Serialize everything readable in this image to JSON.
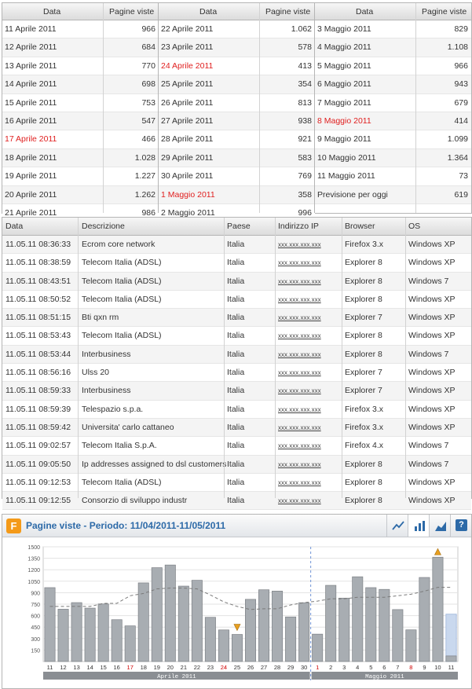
{
  "daily_views": {
    "header": {
      "date": "Data",
      "views": "Pagine viste"
    },
    "columns": [
      [
        {
          "date": "11 Aprile 2011",
          "value": "966",
          "highlight": false
        },
        {
          "date": "12 Aprile 2011",
          "value": "684",
          "highlight": false
        },
        {
          "date": "13 Aprile 2011",
          "value": "770",
          "highlight": false
        },
        {
          "date": "14 Aprile 2011",
          "value": "698",
          "highlight": false
        },
        {
          "date": "15 Aprile 2011",
          "value": "753",
          "highlight": false
        },
        {
          "date": "16 Aprile 2011",
          "value": "547",
          "highlight": false
        },
        {
          "date": "17 Aprile 2011",
          "value": "466",
          "highlight": true
        },
        {
          "date": "18 Aprile 2011",
          "value": "1.028",
          "highlight": false
        },
        {
          "date": "19 Aprile 2011",
          "value": "1.227",
          "highlight": false
        },
        {
          "date": "20 Aprile 2011",
          "value": "1.262",
          "highlight": false
        },
        {
          "date": "21 Aprile 2011",
          "value": "986",
          "highlight": false
        }
      ],
      [
        {
          "date": "22 Aprile 2011",
          "value": "1.062",
          "highlight": false
        },
        {
          "date": "23 Aprile 2011",
          "value": "578",
          "highlight": false
        },
        {
          "date": "24 Aprile 2011",
          "value": "413",
          "highlight": true
        },
        {
          "date": "25 Aprile 2011",
          "value": "354",
          "highlight": false
        },
        {
          "date": "26 Aprile 2011",
          "value": "813",
          "highlight": false
        },
        {
          "date": "27 Aprile 2011",
          "value": "938",
          "highlight": false
        },
        {
          "date": "28 Aprile 2011",
          "value": "921",
          "highlight": false
        },
        {
          "date": "29 Aprile 2011",
          "value": "583",
          "highlight": false
        },
        {
          "date": "30 Aprile 2011",
          "value": "769",
          "highlight": false
        },
        {
          "date": "1 Maggio 2011",
          "value": "358",
          "highlight": true
        },
        {
          "date": "2 Maggio 2011",
          "value": "996",
          "highlight": false
        }
      ],
      [
        {
          "date": "3 Maggio 2011",
          "value": "829",
          "highlight": false
        },
        {
          "date": "4 Maggio 2011",
          "value": "1.108",
          "highlight": false
        },
        {
          "date": "5 Maggio 2011",
          "value": "966",
          "highlight": false
        },
        {
          "date": "6 Maggio 2011",
          "value": "943",
          "highlight": false
        },
        {
          "date": "7 Maggio 2011",
          "value": "679",
          "highlight": false
        },
        {
          "date": "8 Maggio 2011",
          "value": "414",
          "highlight": true
        },
        {
          "date": "9 Maggio 2011",
          "value": "1.099",
          "highlight": false
        },
        {
          "date": "10 Maggio 2011",
          "value": "1.364",
          "highlight": false
        },
        {
          "date": "11 Maggio 2011",
          "value": "73",
          "highlight": false
        },
        {
          "date": "Previsione per oggi",
          "value": "619",
          "highlight": false
        }
      ]
    ]
  },
  "visitor_log": {
    "headers": [
      "Data",
      "Descrizione",
      "Paese",
      "Indirizzo IP",
      "Browser",
      "OS"
    ],
    "rows": [
      [
        "11.05.11  08:36:33",
        "Ecrom core network",
        "Italia",
        "xxx.xxx.xxx.xxx",
        "Firefox 3.x",
        "Windows XP"
      ],
      [
        "11.05.11  08:38:59",
        "Telecom Italia (ADSL)",
        "Italia",
        "xxx.xxx.xxx.xxx",
        "Explorer 8",
        "Windows XP"
      ],
      [
        "11.05.11  08:43:51",
        "Telecom Italia (ADSL)",
        "Italia",
        "xxx.xxx.xxx.xxx",
        "Explorer 8",
        "Windows 7"
      ],
      [
        "11.05.11  08:50:52",
        "Telecom Italia (ADSL)",
        "Italia",
        "xxx.xxx.xxx.xxx",
        "Explorer 8",
        "Windows XP"
      ],
      [
        "11.05.11  08:51:15",
        "Bti qxn rm",
        "Italia",
        "xxx.xxx.xxx.xxx",
        "Explorer 7",
        "Windows XP"
      ],
      [
        "11.05.11  08:53:43",
        "Telecom Italia (ADSL)",
        "Italia",
        "xxx.xxx.xxx.xxx",
        "Explorer 8",
        "Windows XP"
      ],
      [
        "11.05.11  08:53:44",
        "Interbusiness",
        "Italia",
        "xxx.xxx.xxx.xxx",
        "Explorer 8",
        "Windows 7"
      ],
      [
        "11.05.11  08:56:16",
        "Ulss 20",
        "Italia",
        "xxx.xxx.xxx.xxx",
        "Explorer 7",
        "Windows XP"
      ],
      [
        "11.05.11  08:59:33",
        "Interbusiness",
        "Italia",
        "xxx.xxx.xxx.xxx",
        "Explorer 7",
        "Windows XP"
      ],
      [
        "11.05.11  08:59:39",
        "Telespazio s.p.a.",
        "Italia",
        "xxx.xxx.xxx.xxx",
        "Firefox 3.x",
        "Windows XP"
      ],
      [
        "11.05.11  08:59:42",
        "Universita' carlo cattaneo",
        "Italia",
        "xxx.xxx.xxx.xxx",
        "Firefox 3.x",
        "Windows XP"
      ],
      [
        "11.05.11  09:02:57",
        "Telecom Italia S.p.A.",
        "Italia",
        "xxx.xxx.xxx.xxx",
        "Firefox 4.x",
        "Windows 7"
      ],
      [
        "11.05.11  09:05:50",
        "Ip addresses assigned to dsl customers",
        "Italia",
        "xxx.xxx.xxx.xxx",
        "Explorer 8",
        "Windows 7"
      ],
      [
        "11.05.11  09:12:53",
        "Telecom Italia (ADSL)",
        "Italia",
        "xxx.xxx.xxx.xxx",
        "Explorer 8",
        "Windows XP"
      ],
      [
        "11.05.11  09:12:55",
        "Consorzio di sviluppo industr",
        "Italia",
        "xxx.xxx.xxx.xxx",
        "Explorer 8",
        "Windows XP"
      ]
    ]
  },
  "chart_panel": {
    "logo_letter": "F",
    "title": "Pagine viste - Periodo: 11/04/2011-11/05/2011",
    "toolbar": [
      {
        "name": "line-chart-icon"
      },
      {
        "name": "bar-chart-icon"
      },
      {
        "name": "area-chart-icon"
      },
      {
        "name": "help-icon",
        "label": "?"
      }
    ],
    "colors": {
      "bar": "#a8adb2",
      "bar_stroke": "#7d8186",
      "forecast": "#c9d8ee",
      "trend": "#7a7a7a",
      "weekend": "#d00000",
      "accent": "#2d6aa8",
      "logo": "#f49a19",
      "marker": "#e8a020"
    }
  },
  "chart_data": {
    "type": "bar",
    "ylim": [
      0,
      1500
    ],
    "yticks": [
      150,
      300,
      450,
      600,
      750,
      900,
      1050,
      1200,
      1350,
      1500
    ],
    "categories": [
      "11",
      "12",
      "13",
      "14",
      "15",
      "16",
      "17",
      "18",
      "19",
      "20",
      "21",
      "22",
      "23",
      "24",
      "25",
      "26",
      "27",
      "28",
      "29",
      "30",
      "1",
      "2",
      "3",
      "4",
      "5",
      "6",
      "7",
      "8",
      "9",
      "10",
      "11"
    ],
    "weekend_ticks": [
      "17",
      "24",
      "1",
      "8"
    ],
    "series": [
      {
        "values": [
          966,
          684,
          770,
          698,
          753,
          547,
          466,
          1028,
          1227,
          1262,
          986,
          1062,
          578,
          413,
          354,
          813,
          938,
          921,
          583,
          769,
          358,
          996,
          829,
          1108,
          966,
          943,
          679,
          414,
          1099,
          1364,
          73
        ]
      }
    ],
    "forecast": {
      "category": "11",
      "value": 619
    },
    "trend": [
      720,
      720,
      720,
      720,
      760,
      760,
      860,
      890,
      950,
      960,
      960,
      950,
      870,
      780,
      720,
      680,
      690,
      690,
      740,
      770,
      790,
      820,
      820,
      840,
      840,
      840,
      860,
      880,
      920,
      970,
      970
    ],
    "min_marker": "25",
    "max_marker": "10",
    "month_labels": [
      "Aprile 2011",
      "Maggio 2011"
    ]
  }
}
